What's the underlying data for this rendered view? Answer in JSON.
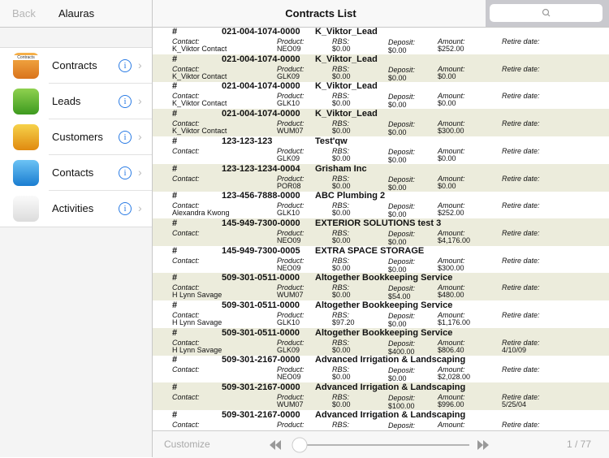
{
  "sidebar": {
    "back": "Back",
    "title": "Alauras",
    "items": [
      {
        "label": "Contracts",
        "icon_text": "Contracts"
      },
      {
        "label": "Leads"
      },
      {
        "label": "Customers"
      },
      {
        "label": "Contacts"
      },
      {
        "label": "Activities"
      }
    ]
  },
  "header": {
    "title": "Contracts List"
  },
  "list": {
    "labels": {
      "hash": "#",
      "contact": "Contact:",
      "product": "Product:",
      "rbs": "RBS:",
      "deposit": "Deposit:",
      "amount": "Amount:",
      "retire": "Retire date:"
    },
    "rows": [
      {
        "number": "021-004-1074-0000",
        "name": "K_Viktor_Lead",
        "contact": "K_Viktor Contact",
        "product": "NEO09",
        "rbs": "$0.00",
        "deposit": "$0.00",
        "amount": "$252.00",
        "retire": null
      },
      {
        "number": "021-004-1074-0000",
        "name": "K_Viktor_Lead",
        "contact": "K_Viktor Contact",
        "product": "GLK09",
        "rbs": "$0.00",
        "deposit": "$0.00",
        "amount": "$0.00",
        "retire": null
      },
      {
        "number": "021-004-1074-0000",
        "name": "K_Viktor_Lead",
        "contact": "K_Viktor Contact",
        "product": "GLK10",
        "rbs": "$0.00",
        "deposit": "$0.00",
        "amount": "$0.00",
        "retire": null
      },
      {
        "number": "021-004-1074-0000",
        "name": "K_Viktor_Lead",
        "contact": "K_Viktor Contact",
        "product": "WUM07",
        "rbs": "$0.00",
        "deposit": "$0.00",
        "amount": "$300.00",
        "retire": null
      },
      {
        "number": "123-123-123",
        "name": "Test'qw",
        "contact": null,
        "product": "GLK09",
        "rbs": "$0.00",
        "deposit": "$0.00",
        "amount": "$0.00",
        "retire": null
      },
      {
        "number": "123-123-1234-0004",
        "name": "Grisham Inc",
        "contact": null,
        "product": "POR08",
        "rbs": "$0.00",
        "deposit": "$0.00",
        "amount": "$0.00",
        "retire": null
      },
      {
        "number": "123-456-7888-0000",
        "name": "ABC Plumbing 2",
        "contact": "Alexandra Kwong",
        "product": "GLK10",
        "rbs": "$0.00",
        "deposit": "$0.00",
        "amount": "$252.00",
        "retire": null
      },
      {
        "number": "145-949-7300-0000",
        "name": "EXTERIOR SOLUTIONS test 3",
        "contact": null,
        "product": "NEO09",
        "rbs": "$0.00",
        "deposit": "$0.00",
        "amount": "$4,176.00",
        "retire": null
      },
      {
        "number": "145-949-7300-0005",
        "name": "EXTRA SPACE STORAGE",
        "contact": null,
        "product": "NEO09",
        "rbs": "$0.00",
        "deposit": "$0.00",
        "amount": "$300.00",
        "retire": null
      },
      {
        "number": "509-301-0511-0000",
        "name": "Altogether Bookkeeping Service",
        "contact": "H Lynn Savage",
        "product": "WUM07",
        "rbs": "$0.00",
        "deposit": "$54.00",
        "amount": "$480.00",
        "retire": null
      },
      {
        "number": "509-301-0511-0000",
        "name": "Altogether Bookkeeping Service",
        "contact": "H Lynn Savage",
        "product": "GLK10",
        "rbs": "$97.20",
        "deposit": "$0.00",
        "amount": "$1,176.00",
        "retire": null
      },
      {
        "number": "509-301-0511-0000",
        "name": "Altogether Bookkeeping Service",
        "contact": "H Lynn Savage",
        "product": "GLK09",
        "rbs": "$0.00",
        "deposit": "$400.00",
        "amount": "$806.40",
        "retire": "4/10/09"
      },
      {
        "number": "509-301-2167-0000",
        "name": "Advanced Irrigation & Landscaping",
        "contact": null,
        "product": "NEO09",
        "rbs": "$0.00",
        "deposit": "$0.00",
        "amount": "$2,028.00",
        "retire": null
      },
      {
        "number": "509-301-2167-0000",
        "name": "Advanced Irrigation & Landscaping",
        "contact": null,
        "product": "WUM07",
        "rbs": "$0.00",
        "deposit": "$100.00",
        "amount": "$996.00",
        "retire": "5/25/04"
      },
      {
        "number": "509-301-2167-0000",
        "name": "Advanced Irrigation & Landscaping",
        "contact": null,
        "product": null,
        "rbs": null,
        "deposit": null,
        "amount": null,
        "retire": null
      }
    ]
  },
  "toolbar": {
    "customize": "Customize",
    "page": "1 / 77"
  }
}
